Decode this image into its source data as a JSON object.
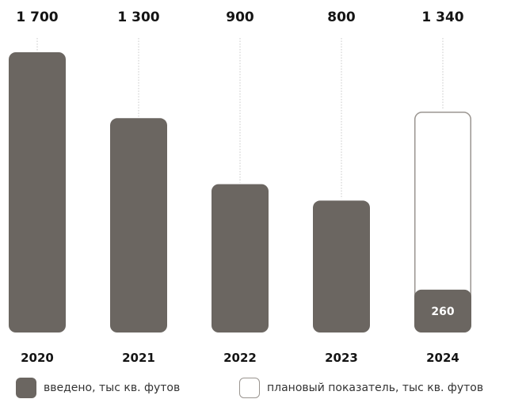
{
  "chart_data": {
    "type": "bar",
    "categories": [
      "2020",
      "2021",
      "2022",
      "2023",
      "2024"
    ],
    "series": [
      {
        "name": "введено, тыс кв. футов",
        "values": [
          1700,
          1300,
          900,
          800,
          260
        ],
        "style": "filled"
      },
      {
        "name": "плановый показатель, тыс кв. футов",
        "values": [
          null,
          null,
          null,
          null,
          1340
        ],
        "style": "outlined"
      }
    ],
    "top_labels": [
      "1 700",
      "1 300",
      "900",
      "800",
      "1 340"
    ],
    "inner_labels": [
      null,
      null,
      null,
      null,
      "260"
    ],
    "ylim": [
      0,
      1700
    ],
    "grid": false,
    "legend_position": "bottom",
    "colors": {
      "filled": "#6b6661",
      "outline": "#9a9590",
      "text": "#141414",
      "leader": "#c8c8c8"
    }
  },
  "legend": {
    "filled_label": "введено, тыс кв. футов",
    "outlined_label": "плановый показатель, тыс кв. футов"
  }
}
